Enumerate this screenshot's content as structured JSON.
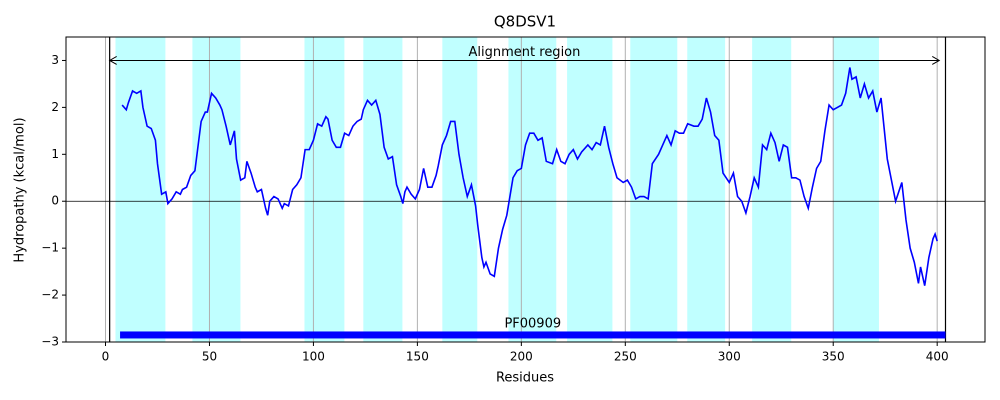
{
  "chart_data": {
    "type": "line",
    "title": "Q8DSV1",
    "xlabel": "Residues",
    "ylabel": "Hydropathy (kcal/mol)",
    "xlim": [
      -19,
      423
    ],
    "ylim": [
      -3,
      3.5
    ],
    "xticks": [
      0,
      50,
      100,
      150,
      200,
      250,
      300,
      350,
      400
    ],
    "yticks": [
      {
        "value": -3,
        "label": "−3"
      },
      {
        "value": -2,
        "label": "−2"
      },
      {
        "value": -1,
        "label": "−1"
      },
      0,
      1,
      2,
      3
    ],
    "grid": "x",
    "color": "#0000ff",
    "region_color": "#c0ffff",
    "regions": [
      [
        4.8,
        28.8
      ],
      [
        41.8,
        64.9
      ],
      [
        95.7,
        114.9
      ],
      [
        124,
        142.8
      ],
      [
        162,
        178.8
      ],
      [
        193.8,
        216.8
      ],
      [
        222,
        243.8
      ],
      [
        252.4,
        275
      ],
      [
        279.8,
        298
      ],
      [
        311,
        329.8
      ],
      [
        350,
        372
      ]
    ],
    "vlines": [
      2,
      404
    ],
    "annotations": [
      {
        "text": "Alignment region",
        "start": 2,
        "end": 401,
        "y": 3
      }
    ],
    "domains": [
      {
        "text": "PF00909",
        "start": 7,
        "end": 404,
        "y": -2.85
      }
    ],
    "x": [
      8,
      10,
      11,
      13,
      15,
      17,
      18,
      20,
      22,
      24,
      25,
      27,
      29,
      30,
      32,
      34,
      36,
      37,
      39,
      41,
      43,
      44,
      46,
      48,
      49,
      51,
      53,
      55,
      56,
      58,
      60,
      62,
      63,
      65,
      67,
      68,
      70,
      72,
      73,
      75,
      77,
      78,
      79,
      81,
      83,
      85,
      86,
      88,
      90,
      92,
      94,
      96,
      98,
      100,
      102,
      104,
      106,
      107,
      109,
      111,
      113,
      115,
      117,
      119,
      121,
      123,
      124,
      126,
      128,
      130,
      132,
      134,
      136,
      138,
      140,
      142,
      143,
      144,
      145,
      147,
      149,
      151,
      153,
      155,
      157,
      159,
      160,
      162,
      164,
      166,
      168,
      170,
      172,
      174,
      176,
      178,
      179,
      181,
      182,
      183,
      185,
      187,
      189,
      191,
      193,
      196,
      198,
      200,
      202,
      204,
      206,
      208,
      210,
      212,
      215,
      217,
      219,
      221,
      223,
      225,
      227,
      229,
      232,
      234,
      236,
      238,
      240,
      242,
      244,
      246,
      249,
      251,
      253,
      255,
      257,
      259,
      261,
      263,
      266,
      268,
      270,
      272,
      274,
      276,
      278,
      280,
      283,
      285,
      287,
      289,
      291,
      293,
      295,
      297,
      300,
      302,
      304,
      306,
      308,
      310,
      312,
      314,
      316,
      318,
      320,
      322,
      324,
      326,
      328,
      330,
      332,
      334,
      336,
      338,
      340,
      342,
      344,
      346,
      348,
      350,
      352,
      354,
      356,
      358,
      359,
      361,
      363,
      365,
      367,
      369,
      371,
      373,
      376,
      380,
      383,
      385,
      387,
      389,
      391,
      392,
      394,
      396,
      398,
      399,
      400
    ],
    "values": [
      2.05,
      1.95,
      2.1,
      2.35,
      2.3,
      2.35,
      2.0,
      1.6,
      1.55,
      1.3,
      0.8,
      0.15,
      0.2,
      -0.05,
      0.05,
      0.2,
      0.15,
      0.25,
      0.3,
      0.55,
      0.65,
      1.0,
      1.7,
      1.9,
      1.9,
      2.3,
      2.2,
      2.05,
      1.95,
      1.6,
      1.2,
      1.5,
      0.9,
      0.45,
      0.5,
      0.85,
      0.6,
      0.3,
      0.2,
      0.25,
      -0.15,
      -0.3,
      0.0,
      0.1,
      0.05,
      -0.15,
      -0.05,
      -0.1,
      0.25,
      0.35,
      0.5,
      1.1,
      1.1,
      1.3,
      1.65,
      1.6,
      1.8,
      1.75,
      1.3,
      1.15,
      1.15,
      1.45,
      1.4,
      1.6,
      1.7,
      1.75,
      1.95,
      2.15,
      2.05,
      2.15,
      1.85,
      1.15,
      0.9,
      0.95,
      0.35,
      0.1,
      -0.05,
      0.2,
      0.3,
      0.15,
      0.05,
      0.25,
      0.7,
      0.3,
      0.3,
      0.55,
      0.75,
      1.2,
      1.4,
      1.7,
      1.7,
      1.0,
      0.5,
      0.1,
      0.35,
      -0.1,
      -0.5,
      -1.2,
      -1.4,
      -1.3,
      -1.55,
      -1.6,
      -1.0,
      -0.6,
      -0.3,
      0.5,
      0.65,
      0.7,
      1.2,
      1.45,
      1.45,
      1.3,
      1.35,
      0.85,
      0.8,
      1.1,
      0.85,
      0.8,
      1.0,
      1.1,
      0.9,
      1.05,
      1.2,
      1.1,
      1.25,
      1.2,
      1.6,
      1.15,
      0.8,
      0.5,
      0.4,
      0.45,
      0.3,
      0.05,
      0.1,
      0.1,
      0.05,
      0.8,
      1.0,
      1.2,
      1.4,
      1.2,
      1.5,
      1.45,
      1.45,
      1.65,
      1.6,
      1.6,
      1.75,
      2.2,
      1.9,
      1.4,
      1.3,
      0.6,
      0.4,
      0.6,
      0.1,
      0.0,
      -0.25,
      0.1,
      0.5,
      0.3,
      1.2,
      1.1,
      1.45,
      1.25,
      0.85,
      1.2,
      1.15,
      0.5,
      0.5,
      0.45,
      0.1,
      -0.15,
      0.3,
      0.7,
      0.85,
      1.5,
      2.05,
      1.95,
      2.0,
      2.05,
      2.3,
      2.85,
      2.6,
      2.65,
      2.2,
      2.5,
      2.2,
      2.35,
      1.9,
      2.2,
      0.9,
      0.0,
      0.4,
      -0.4,
      -1.0,
      -1.3,
      -1.75,
      -1.4,
      -1.8,
      -1.2,
      -0.8,
      -0.7,
      -0.85
    ]
  }
}
